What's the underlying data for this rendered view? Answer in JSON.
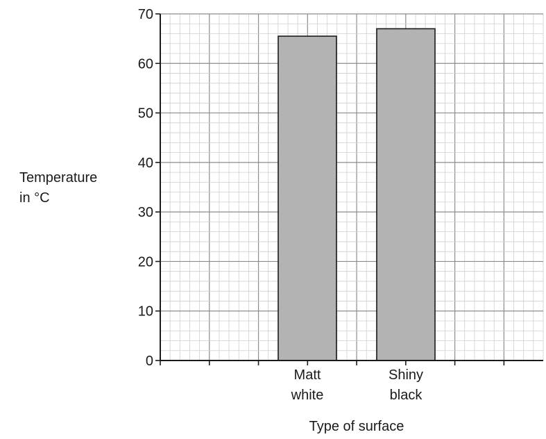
{
  "chart_data": {
    "type": "bar",
    "categories": [
      {
        "line1": "Matt",
        "line2": "white"
      },
      {
        "line1": "Shiny",
        "line2": "black"
      }
    ],
    "values": [
      65.5,
      67
    ],
    "xlabel": "Type of surface",
    "ylabel": {
      "line1": "Temperature",
      "line2": "in °C"
    },
    "ylim": [
      0,
      70
    ],
    "yticks": [
      0,
      10,
      20,
      30,
      40,
      50,
      60,
      70
    ],
    "grid": true,
    "legend": "none",
    "colors": {
      "bar_fill": "#b3b3b3",
      "bar_stroke": "#1a1a1a",
      "grid_major": "#8c8c8c",
      "grid_minor": "#cfcfcf",
      "axis": "#1a1a1a"
    }
  }
}
